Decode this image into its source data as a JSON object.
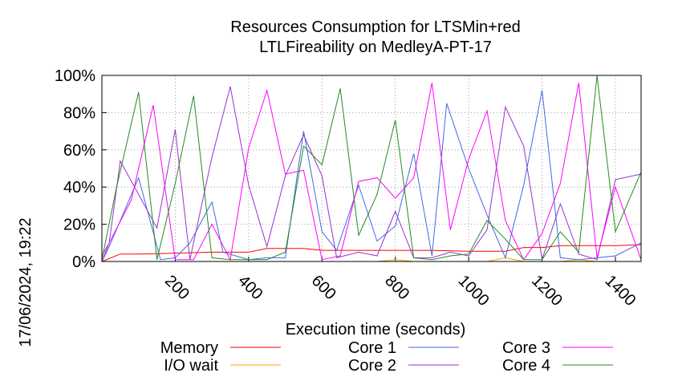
{
  "chart_data": {
    "type": "line",
    "title": "Resources Consumption for LTSMin+red",
    "subtitle": "LTLFireability on MedleyA-PT-17",
    "xlabel": "Execution time (seconds)",
    "ylabel": "",
    "timestamp": "17/06/2024, 19:22",
    "xlim": [
      0,
      1470
    ],
    "ylim": [
      0,
      100
    ],
    "x_ticks": [
      200,
      400,
      600,
      800,
      1000,
      1200,
      1400
    ],
    "y_ticks": [
      0,
      20,
      40,
      60,
      80,
      100
    ],
    "y_tick_labels": [
      "0%",
      "20%",
      "40%",
      "60%",
      "80%",
      "100%"
    ],
    "grid": true,
    "legend_position": "bottom",
    "legend_rows": [
      [
        "Memory",
        "Core 1",
        "Core 3"
      ],
      [
        "I/O wait",
        "Core 2",
        "Core 4"
      ]
    ],
    "series": [
      {
        "name": "Memory",
        "color": "#ff0000",
        "x": [
          0,
          50,
          100,
          200,
          300,
          350,
          400,
          450,
          500,
          550,
          600,
          700,
          800,
          900,
          1000,
          1050,
          1100,
          1150,
          1200,
          1250,
          1300,
          1350,
          1400,
          1470
        ],
        "y": [
          0,
          4,
          4,
          4.5,
          5,
          5,
          5,
          7,
          7,
          7,
          6,
          6,
          6,
          6,
          5.5,
          5.5,
          5.5,
          7.5,
          7.5,
          8.5,
          8.5,
          8.5,
          8.5,
          9
        ]
      },
      {
        "name": "I/O wait",
        "color": "#ffa500",
        "x": [
          0,
          700,
          750,
          800,
          850,
          1050,
          1100,
          1150,
          1200,
          1250,
          1300,
          1350,
          1470
        ],
        "y": [
          0,
          0,
          0,
          1,
          0,
          0,
          2,
          0,
          0,
          0,
          1,
          0,
          0
        ]
      },
      {
        "name": "Core 1",
        "color": "#4169e1",
        "x": [
          0,
          20,
          100,
          160,
          200,
          240,
          300,
          330,
          400,
          450,
          500,
          550,
          600,
          640,
          700,
          750,
          800,
          850,
          900,
          940,
          1000,
          1050,
          1100,
          1150,
          1200,
          1250,
          1300,
          1350,
          1400,
          1470
        ],
        "y": [
          0,
          8,
          45,
          1,
          2,
          10,
          32,
          5,
          1,
          2,
          2,
          70,
          16,
          6,
          41,
          11,
          19,
          58,
          3,
          85,
          50,
          25,
          2,
          41,
          92,
          2,
          1,
          2,
          3,
          10
        ]
      },
      {
        "name": "Core 2",
        "color": "#9932cc",
        "x": [
          0,
          20,
          50,
          150,
          200,
          240,
          300,
          350,
          400,
          450,
          500,
          550,
          600,
          640,
          700,
          750,
          800,
          850,
          900,
          950,
          1000,
          1050,
          1100,
          1150,
          1200,
          1250,
          1300,
          1350,
          1400,
          1470
        ],
        "y": [
          0,
          10,
          54,
          18,
          71,
          1,
          56,
          94,
          41,
          8,
          46,
          68,
          46,
          2,
          5,
          3,
          27,
          2,
          2,
          5,
          3,
          17,
          83,
          62,
          1,
          31,
          4,
          1,
          44,
          47
        ]
      },
      {
        "name": "Core 3",
        "color": "#ff00ff",
        "x": [
          0,
          20,
          80,
          140,
          200,
          250,
          300,
          350,
          400,
          450,
          500,
          550,
          600,
          650,
          700,
          750,
          800,
          850,
          900,
          950,
          1000,
          1050,
          1100,
          1150,
          1200,
          1250,
          1300,
          1350,
          1400,
          1470
        ],
        "y": [
          3,
          10,
          33,
          84,
          1,
          1,
          20,
          1,
          61,
          92,
          47,
          49,
          1,
          3,
          43,
          45,
          34,
          45,
          96,
          17,
          55,
          81,
          22,
          1,
          15,
          42,
          96,
          2,
          40,
          1
        ]
      },
      {
        "name": "Core 4",
        "color": "#228b22",
        "x": [
          0,
          40,
          100,
          150,
          200,
          250,
          300,
          350,
          400,
          450,
          500,
          550,
          600,
          650,
          700,
          750,
          800,
          850,
          900,
          950,
          1000,
          1050,
          1100,
          1150,
          1200,
          1250,
          1300,
          1350,
          1400,
          1470
        ],
        "y": [
          1,
          40,
          91,
          1,
          42,
          89,
          2,
          1,
          1,
          1,
          5,
          62,
          52,
          93,
          14,
          36,
          76,
          2,
          1,
          3,
          4,
          22,
          12,
          1,
          1,
          16,
          5,
          100,
          16,
          48
        ]
      }
    ]
  }
}
